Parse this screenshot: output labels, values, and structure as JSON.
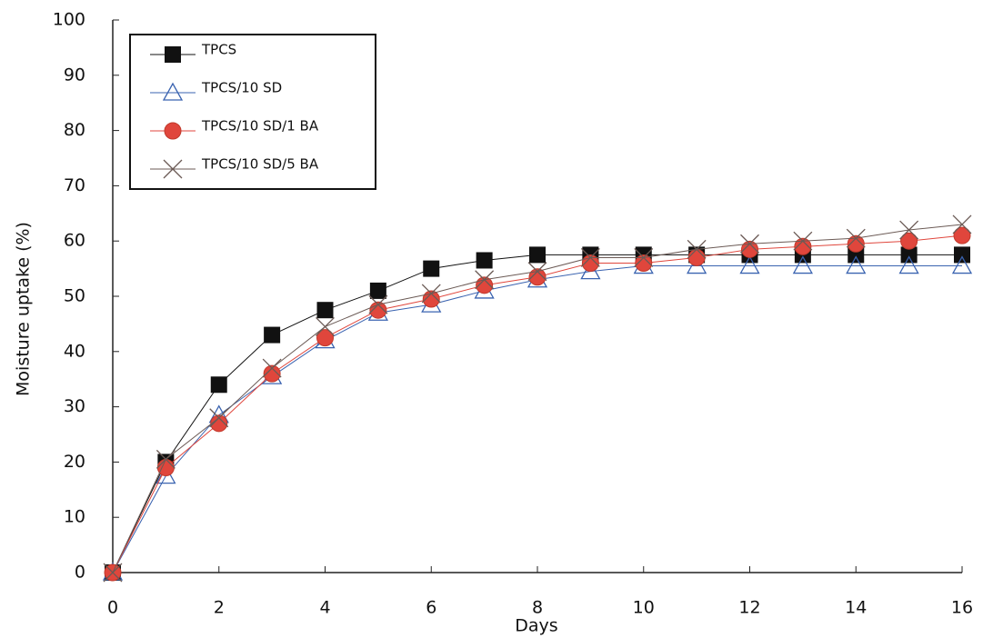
{
  "chart_data": {
    "type": "line",
    "x_label": "Days",
    "y_label": "Moisture uptake (%)",
    "x": [
      0,
      1,
      2,
      3,
      4,
      5,
      6,
      7,
      8,
      9,
      10,
      11,
      12,
      13,
      14,
      15,
      16
    ],
    "xlim": [
      0,
      16
    ],
    "xticks": [
      0,
      2,
      4,
      6,
      8,
      10,
      12,
      14,
      16
    ],
    "ylim": [
      0,
      100
    ],
    "yticks": [
      0,
      10,
      20,
      30,
      40,
      50,
      60,
      70,
      80,
      90,
      100
    ],
    "legend": "upper left",
    "series": [
      {
        "name": "TPCS",
        "color": "#111111",
        "marker": "square",
        "values": [
          0,
          20,
          34,
          43,
          47.5,
          51,
          55,
          56.5,
          57.5,
          57.5,
          57.5,
          57.5,
          57.5,
          57.5,
          57.5,
          57.5,
          57.5
        ]
      },
      {
        "name": "TPCS/10 SD",
        "color": "#3a63b0",
        "marker": "triangle",
        "values": [
          0,
          17.5,
          28.5,
          35.5,
          42,
          47,
          48.5,
          51,
          53,
          54.5,
          55.5,
          55.5,
          55.5,
          55.5,
          55.5,
          55.5,
          55.5
        ]
      },
      {
        "name": "TPCS/10 SD/1 BA",
        "color": "#e0463c",
        "marker": "circle",
        "values": [
          0,
          19,
          27,
          36,
          42.5,
          47.5,
          49.5,
          52,
          53.5,
          56,
          56,
          57,
          58.5,
          59,
          59.5,
          60,
          61
        ]
      },
      {
        "name": "TPCS/10 SD/5 BA",
        "color": "#6b5a55",
        "marker": "cross",
        "values": [
          0,
          20.5,
          28,
          37,
          44.5,
          48.5,
          50.5,
          53,
          54.5,
          57,
          57,
          58.5,
          59.5,
          60,
          60.5,
          62,
          63
        ]
      }
    ]
  }
}
